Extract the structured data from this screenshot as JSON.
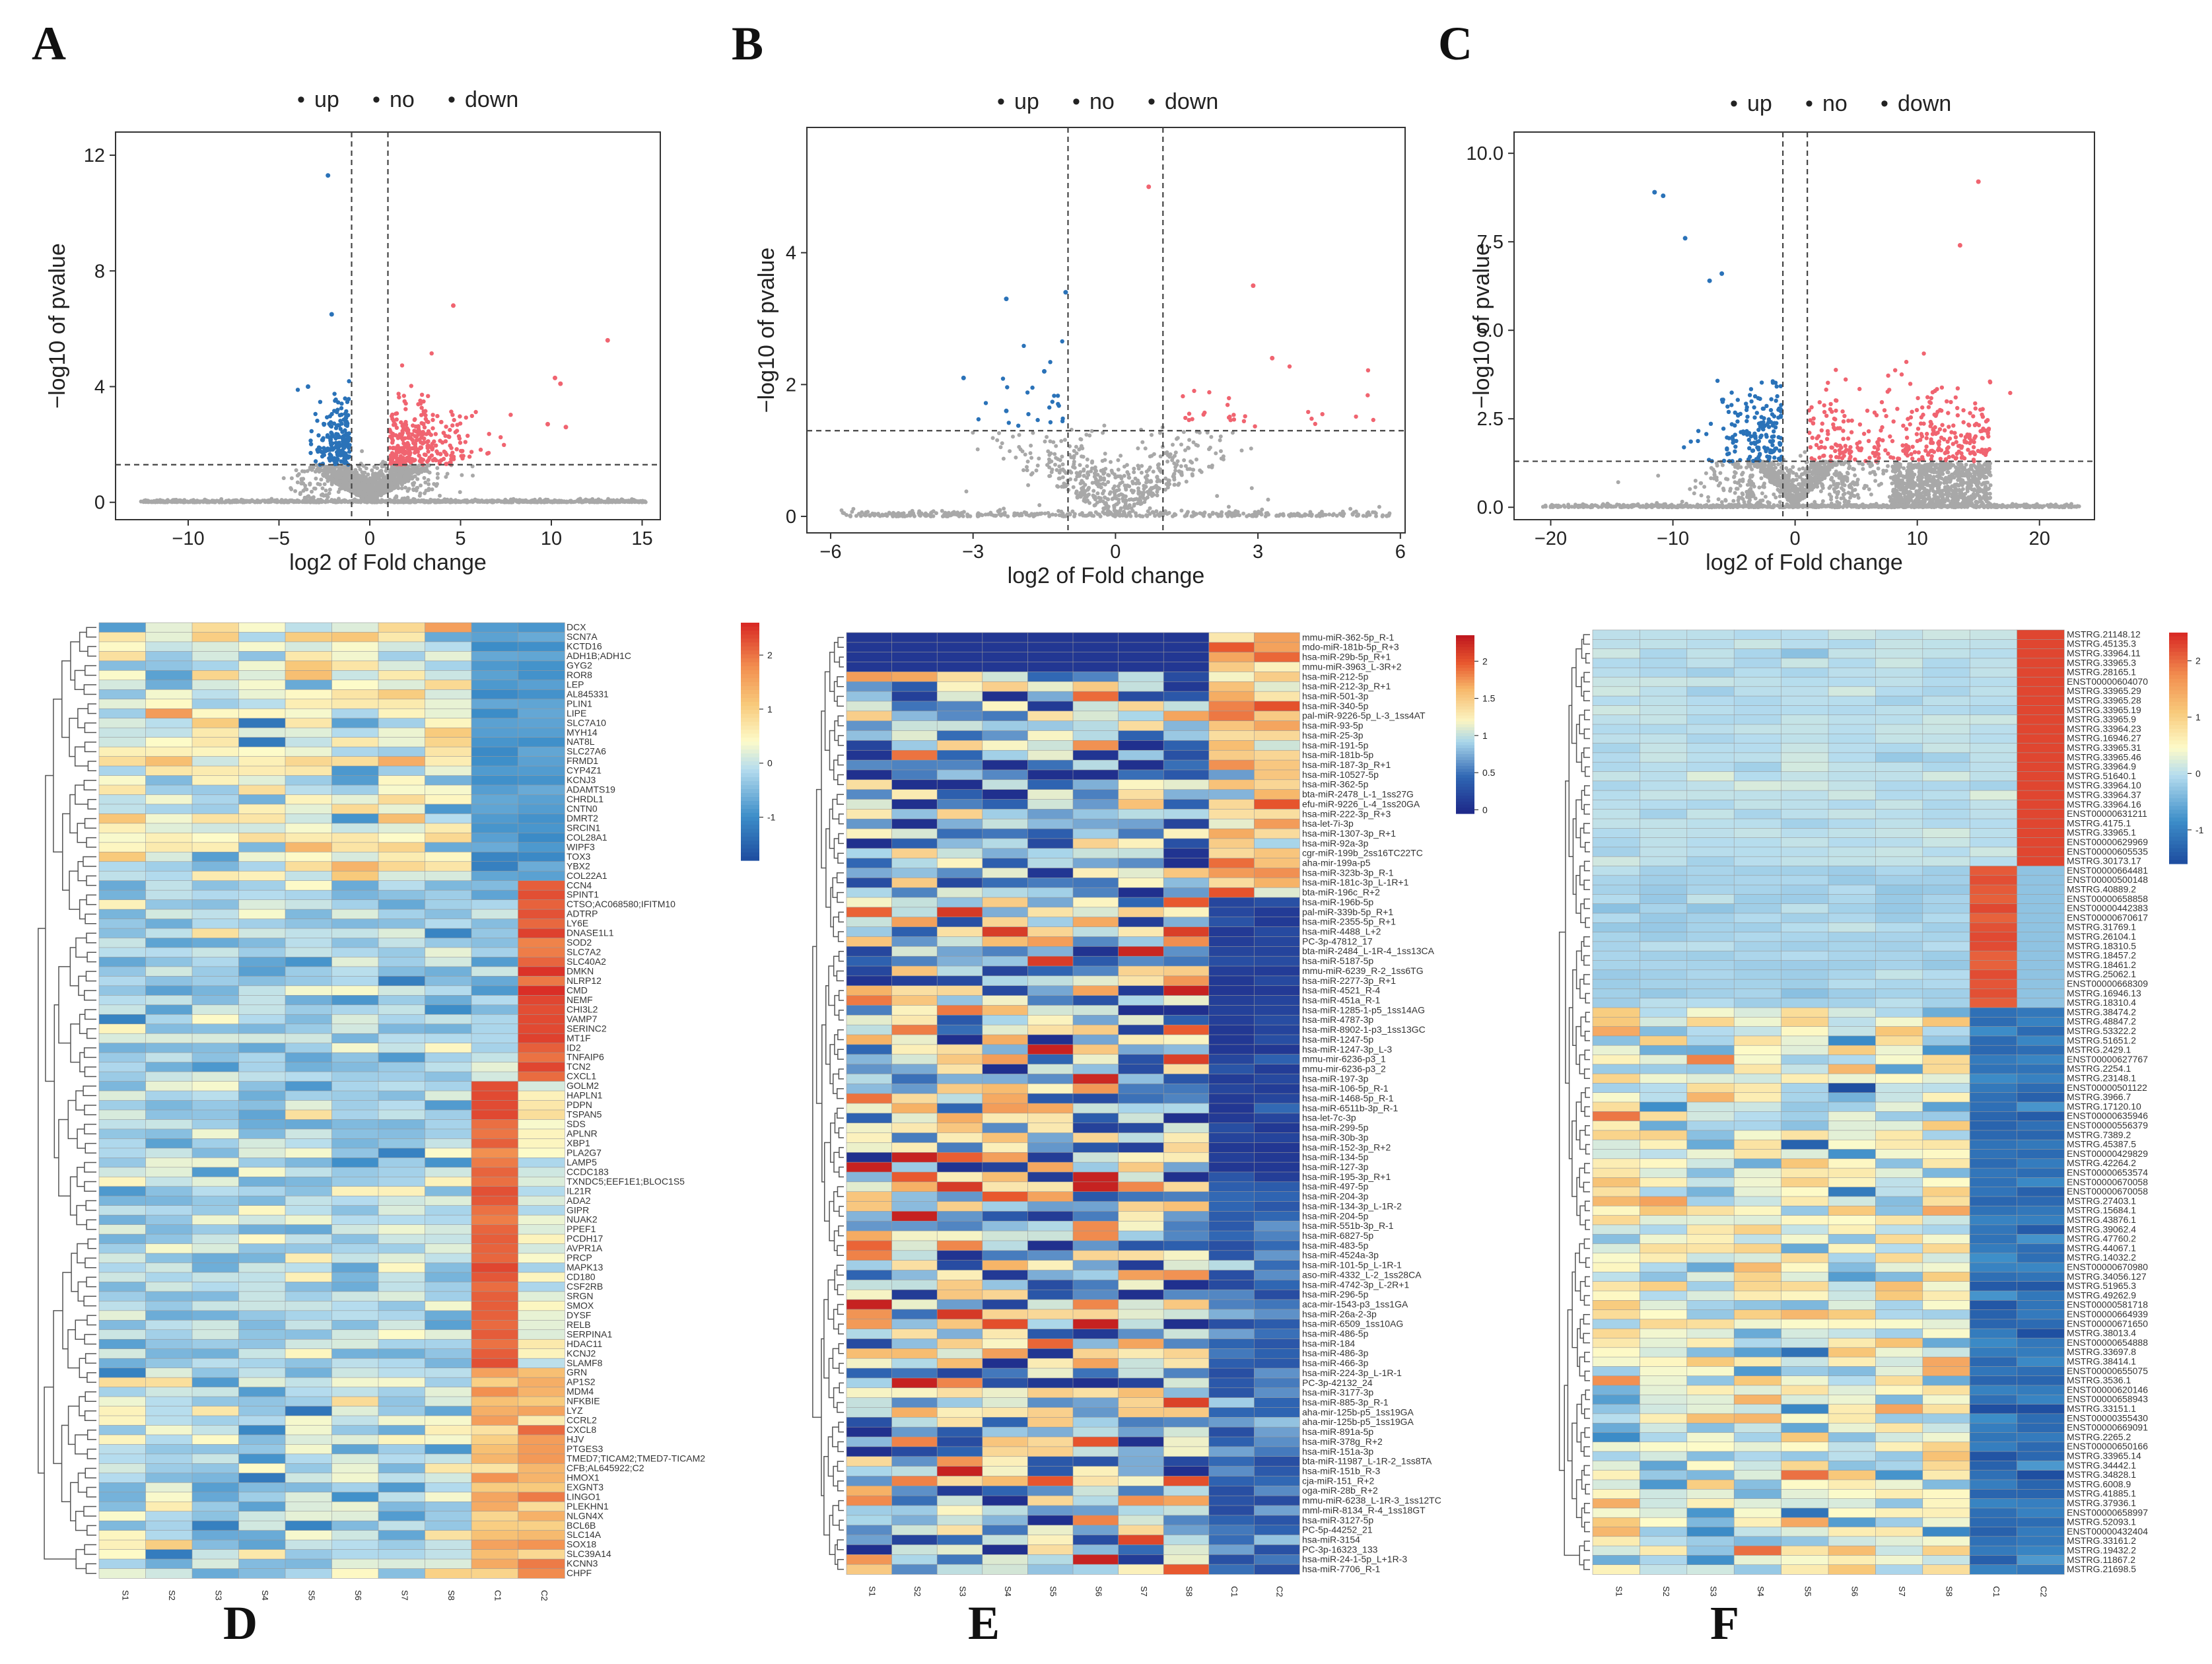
{
  "panel_labels": {
    "A": "A",
    "B": "B",
    "C": "C",
    "D": "D",
    "E": "E",
    "F": "F"
  },
  "colors": {
    "up": "#f06470",
    "no": "#a8a8a8",
    "down": "#2a72b8",
    "hm_low": "#1a3f9c",
    "hm_mid": "#fdfbc9",
    "hm_high": "#e8372a"
  },
  "chart_data": [
    {
      "id": "A",
      "type": "scatter",
      "legend": [
        {
          "name": "up",
          "symbol": "•"
        },
        {
          "name": "no",
          "symbol": "•"
        },
        {
          "name": "down",
          "symbol": "•"
        }
      ],
      "xlabel": "log2 of Fold change",
      "ylabel": "−log10 of pvalue",
      "xlim": [
        -14,
        16
      ],
      "ylim": [
        -0.6,
        12.8
      ],
      "xticks": [
        -10,
        -5,
        0,
        5,
        10,
        15
      ],
      "yticks": [
        0,
        4,
        8,
        12
      ],
      "xtick_labels": [
        "−10",
        "−5",
        "0",
        "5",
        "10",
        "15"
      ],
      "ytick_labels": [
        "0",
        "4",
        "8",
        "12"
      ],
      "vlines": [
        -1,
        1
      ],
      "hline": 1.3,
      "highlights": [
        {
          "x": -2.3,
          "y": 11.3,
          "g": "down"
        },
        {
          "x": -2.1,
          "y": 6.5,
          "g": "down"
        },
        {
          "x": 4.6,
          "y": 6.8,
          "g": "up"
        },
        {
          "x": 13.1,
          "y": 5.6,
          "g": "up"
        },
        {
          "x": 10.2,
          "y": 4.3,
          "g": "up"
        },
        {
          "x": 10.5,
          "y": 4.1,
          "g": "up"
        },
        {
          "x": 9.8,
          "y": 2.7,
          "g": "up"
        },
        {
          "x": 10.8,
          "y": 2.6,
          "g": "up"
        },
        {
          "x": -3.4,
          "y": 4.0,
          "g": "down"
        }
      ]
    },
    {
      "id": "B",
      "type": "scatter",
      "legend": [
        {
          "name": "up",
          "symbol": "•"
        },
        {
          "name": "no",
          "symbol": "•"
        },
        {
          "name": "down",
          "symbol": "•"
        }
      ],
      "xlabel": "log2 of Fold change",
      "ylabel": "−log10 of pvalue",
      "xlim": [
        -6.5,
        6.1
      ],
      "ylim": [
        -0.25,
        5.9
      ],
      "xticks": [
        -6,
        -3,
        0,
        3,
        6
      ],
      "yticks": [
        0,
        2,
        4
      ],
      "xtick_labels": [
        "−6",
        "−3",
        "0",
        "3",
        "6"
      ],
      "ytick_labels": [
        "0",
        "2",
        "4"
      ],
      "vlines": [
        -1,
        1
      ],
      "hline": 1.3,
      "highlights": [
        {
          "x": 0.7,
          "y": 5.0,
          "g": "up"
        },
        {
          "x": 2.9,
          "y": 3.5,
          "g": "up"
        },
        {
          "x": -1.05,
          "y": 3.4,
          "g": "down"
        },
        {
          "x": -2.3,
          "y": 3.3,
          "g": "down"
        },
        {
          "x": -3.2,
          "y": 2.1,
          "g": "down"
        },
        {
          "x": 3.3,
          "y": 2.4,
          "g": "up"
        },
        {
          "x": -2.3,
          "y": 1.6,
          "g": "down"
        },
        {
          "x": -1.5,
          "y": 2.2,
          "g": "down"
        }
      ]
    },
    {
      "id": "C",
      "type": "scatter",
      "legend": [
        {
          "name": "up",
          "symbol": "•"
        },
        {
          "name": "no",
          "symbol": "•"
        },
        {
          "name": "down",
          "symbol": "•"
        }
      ],
      "xlabel": "log2 of Fold change",
      "ylabel": "−log10 of pvalue",
      "xlim": [
        -23,
        24.5
      ],
      "ylim": [
        -0.35,
        10.6
      ],
      "xticks": [
        -20,
        -10,
        0,
        10,
        20
      ],
      "yticks": [
        0,
        2.5,
        5,
        7.5,
        10
      ],
      "xtick_labels": [
        "−20",
        "−10",
        "0",
        "10",
        "20"
      ],
      "ytick_labels": [
        "0.0",
        "2.5",
        "5.0",
        "7.5",
        "10.0"
      ],
      "vlines": [
        -1,
        1
      ],
      "hline": 1.3,
      "highlights": [
        {
          "x": -11.5,
          "y": 8.9,
          "g": "down"
        },
        {
          "x": -10.8,
          "y": 8.8,
          "g": "down"
        },
        {
          "x": -9.0,
          "y": 7.6,
          "g": "down"
        },
        {
          "x": 15.0,
          "y": 9.2,
          "g": "up"
        },
        {
          "x": 13.5,
          "y": 7.4,
          "g": "up"
        },
        {
          "x": -6.0,
          "y": 6.6,
          "g": "down"
        },
        {
          "x": -7.0,
          "y": 6.4,
          "g": "down"
        }
      ]
    }
  ],
  "heatmaps": [
    {
      "id": "D",
      "type": "heatmap",
      "columns": [
        "S1",
        "S2",
        "S3",
        "S4",
        "S5",
        "S6",
        "S7",
        "S8",
        "C1",
        "C2"
      ],
      "colorbar": {
        "ticks": [
          "2",
          "1",
          "0",
          "-1"
        ],
        "values": [
          2,
          1,
          0,
          -1
        ],
        "min": -1.8,
        "max": 2.6
      },
      "rows": [
        "DCX",
        "SCN7A",
        "KCTD16",
        "ADH1B;ADH1C",
        "GYG2",
        "ROR8",
        "LEP",
        "AL845331",
        "PLIN1",
        "LIPE",
        "SLC7A10",
        "MYH14",
        "NAT8L",
        "SLC27A6",
        "FRMD1",
        "CYP4Z1",
        "KCNJ3",
        "ADAMTS19",
        "CHRDL1",
        "CNTN0",
        "DMRT2",
        "SRCIN1",
        "COL28A1",
        "WIPF3",
        "TOX3",
        "YBX2",
        "COL22A1",
        "CCN4",
        "SPINT1",
        "CTSO;AC068580;IFITM10",
        "ADTRP",
        "LY6E",
        "DNASE1L1",
        "SOD2",
        "SLC7A2",
        "SLC40A2",
        "DMKN",
        "NLRP12",
        "CMD",
        "NEMF",
        "CHI3L2",
        "VAMP7",
        "SERINC2",
        "MT1F",
        "ID2",
        "TNFAIP6",
        "TCN2",
        "CXCL1",
        "GOLM2",
        "HAPLN1",
        "PDPN",
        "TSPAN5",
        "SDS",
        "APLNR",
        "XBP1",
        "PLA2G7",
        "LAMP5",
        "CCDC183",
        "TXNDC5;EEF1E1;BLOC1S5",
        "IL21R",
        "ADA2",
        "GIPR",
        "NUAK2",
        "PPEF1",
        "PCDH17",
        "AVPR1A",
        "PRCP",
        "MAPK13",
        "CD180",
        "CSF2RB",
        "SRGN",
        "SMOX",
        "DYSF",
        "RELB",
        "SERPINA1",
        "HDAC11",
        "KCNJ2",
        "SLAMF8",
        "GRN",
        "AP1S2",
        "MDM4",
        "NFKBIE",
        "LYZ",
        "CCRL2",
        "CXCL8",
        "HJV",
        "PTGES3",
        "TMED7;TICAM2;TMED7-TICAM2",
        "CFB;AL645922;C2",
        "HMOX1",
        "EXGNT3",
        "LINGO1",
        "PLEKHN1",
        "NLGN4X",
        "BCL6B",
        "SLC14A",
        "SOX18",
        "SLC39A14",
        "KCNN3",
        "CHPF"
      ]
    },
    {
      "id": "E",
      "type": "heatmap",
      "columns": [
        "S1",
        "S2",
        "S3",
        "S4",
        "S5",
        "S6",
        "S7",
        "S8",
        "C1",
        "C2"
      ],
      "colorbar": {
        "ticks": [
          "2",
          "1.5",
          "1",
          "0.5",
          "0"
        ],
        "values": [
          2,
          1.5,
          1,
          0.5,
          0
        ],
        "min": -0.05,
        "max": 2.35
      },
      "rows": [
        "mmu-miR-362-5p_R-1",
        "mdo-miR-181b-5p_R+3",
        "hsa-miR-29b-5p_R+1",
        "mmu-miR-3963_L-3R+2",
        "hsa-miR-212-5p",
        "hsa-miR-212-3p_R+1",
        "hsa-miR-501-3p",
        "hsa-miR-340-5p",
        "pal-miR-9226-5p_L-3_1ss4AT",
        "hsa-miR-93-5p",
        "hsa-miR-25-3p",
        "hsa-miR-191-5p",
        "hsa-miR-181b-5p",
        "hsa-miR-187-3p_R+1",
        "hsa-miR-10527-5p",
        "hsa-miR-362-5p",
        "bta-miR-2478_L-1_1ss27G",
        "efu-miR-9226_L-4_1ss20GA",
        "hsa-miR-222-3p_R+3",
        "hsa-let-7i-3p",
        "hsa-miR-1307-3p_R+1",
        "hsa-miR-92a-3p",
        "cgr-miR-199b_2ss16TC22TC",
        "aha-mir-199a-p5",
        "hsa-miR-323b-3p_R-1",
        "hsa-miR-181c-3p_L-1R+1",
        "bta-miR-196c_R+2",
        "hsa-miR-196b-5p",
        "pal-miR-339b-5p_R+1",
        "hsa-miR-2355-5p_R+1",
        "hsa-miR-4488_L+2",
        "PC-3p-47812_17",
        "bta-miR-2484_L-1R-4_1ss13CA",
        "hsa-miR-5187-5p",
        "mmu-miR-6239_R-2_1ss6TG",
        "hsa-miR-2277-3p_R+1",
        "hsa-miR-4521_R-4",
        "hsa-miR-451a_R-1",
        "hsa-miR-1285-1-p5_1ss14AG",
        "hsa-miR-4787-3p",
        "hsa-miR-8902-1-p3_1ss13GC",
        "hsa-miR-1247-5p",
        "hsa-miR-1247-3p_L-3",
        "mmu-mir-6236-p3_1",
        "mmu-mir-6236-p3_2",
        "hsa-miR-197-3p",
        "hsa-miR-106-5p_R-1",
        "hsa-miR-1468-5p_R-1",
        "hsa-miR-6511b-3p_R-1",
        "hsa-let-7c-3p",
        "hsa-miR-299-5p",
        "hsa-miR-30b-3p",
        "hsa-miR-152-3p_R+2",
        "hsa-miR-134-5p",
        "hsa-miR-127-3p",
        "hsa-miR-195-3p_R+1",
        "hsa-miR-497-5p",
        "hsa-miR-204-3p",
        "hsa-miR-134-3p_L-1R-2",
        "hsa-miR-204-5p",
        "hsa-miR-551b-3p_R-1",
        "hsa-miR-6827-5p",
        "hsa-miR-483-5p",
        "hsa-miR-4524a-3p",
        "hsa-miR-101-5p_L-1R-1",
        "aso-miR-4332_L-2_1ss28CA",
        "hsa-miR-4742-3p_L-2R+1",
        "hsa-miR-296-5p",
        "aca-mir-1543-p3_1ss1GA",
        "hsa-miR-26a-2-3p",
        "hsa-miR-6509_1ss10AG",
        "hsa-miR-486-5p",
        "hsa-miR-184",
        "hsa-miR-486-3p",
        "hsa-miR-466-3p",
        "hsa-miR-224-3p_L-1R-1",
        "PC-3p-42132_24",
        "hsa-miR-3177-3p",
        "hsa-miR-885-3p_R-1",
        "aha-mir-125b-p5_1ss19GA",
        "aha-mir-125b-p5_1ss19GA",
        "hsa-miR-891a-5p",
        "hsa-miR-378g_R+2",
        "hsa-miR-151a-3p",
        "bta-miR-11987_L-1R-2_1ss8TA",
        "hsa-miR-151b_R-3",
        "cja-miR-151_R+2",
        "oga-miR-28b_R+2",
        "mmu-miR-6238_L-1R-3_1ss12TC",
        "mml-miR-8134_R-4_1ss18GT",
        "hsa-miR-3127-5p",
        "PC-5p-44252_21",
        "hsa-miR-3154",
        "PC-3p-16323_133",
        "hsa-miR-24-1-5p_L+1R-3",
        "hsa-miR-7706_R-1"
      ]
    },
    {
      "id": "F",
      "type": "heatmap",
      "columns": [
        "S1",
        "S2",
        "S3",
        "S4",
        "S5",
        "S6",
        "S7",
        "S8",
        "C1",
        "C2"
      ],
      "colorbar": {
        "ticks": [
          "2",
          "1",
          "0",
          "-1"
        ],
        "values": [
          2,
          1,
          0,
          -1
        ],
        "min": -1.6,
        "max": 2.5
      },
      "rows": [
        "MSTRG.21148.12",
        "MSTRG.45135.3",
        "MSTRG.33964.11",
        "MSTRG.33965.3",
        "MSTRG.28165.1",
        "ENST00000604070",
        "MSTRG.33965.29",
        "MSTRG.33965.28",
        "MSTRG.33965.19",
        "MSTRG.33965.9",
        "MSTRG.33964.23",
        "MSTRG.16946.27",
        "MSTRG.33965.31",
        "MSTRG.33965.46",
        "MSTRG.33964.9",
        "MSTRG.51640.1",
        "MSTRG.33964.10",
        "MSTRG.33964.37",
        "MSTRG.33964.16",
        "ENST00000631211",
        "MSTRG.4175.1",
        "MSTRG.33965.1",
        "ENST00000629969",
        "ENST00000605535",
        "MSTRG.30173.17",
        "ENST00000664481",
        "ENST00000500148",
        "MSTRG.40889.2",
        "ENST00000658858",
        "ENST00000442383",
        "ENST00000670617",
        "MSTRG.31769.1",
        "MSTRG.26104.1",
        "MSTRG.18310.5",
        "MSTRG.18457.2",
        "MSTRG.18461.2",
        "MSTRG.25062.1",
        "ENST00000668309",
        "MSTRG.16946.13",
        "MSTRG.18310.4",
        "MSTRG.38474.2",
        "MSTRG.48847.2",
        "MSTRG.53322.2",
        "MSTRG.51651.2",
        "MSTRG.2429.1",
        "ENST00000627767",
        "MSTRG.2254.1",
        "MSTRG.23148.1",
        "ENST00000501122",
        "MSTRG.3966.7",
        "MSTRG.17120.10",
        "ENST00000635946",
        "ENST00000556379",
        "MSTRG.7389.2",
        "MSTRG.45387.5",
        "ENST00000429829",
        "MSTRG.42264.2",
        "ENST00000653574",
        "ENST00000670058",
        "ENST00000670058",
        "MSTRG.27403.1",
        "MSTRG.15684.1",
        "MSTRG.43876.1",
        "MSTRG.39062.4",
        "MSTRG.47760.2",
        "MSTRG.44067.1",
        "MSTRG.14032.2",
        "ENST00000670980",
        "MSTRG.34056.127",
        "MSTRG.51965.3",
        "MSTRG.49262.9",
        "ENST00000581718",
        "ENST00000664939",
        "ENST00000671650",
        "MSTRG.38013.4",
        "ENST00000654888",
        "MSTRG.33697.8",
        "MSTRG.38414.1",
        "ENST00000655075",
        "MSTRG.3536.1",
        "ENST00000620146",
        "ENST00000658943",
        "MSTRG.33151.1",
        "ENST00000355430",
        "ENST00000669091",
        "MSTRG.2265.2",
        "ENST00000650166",
        "MSTRG.33965.14",
        "MSTRG.34442.1",
        "MSTRG.34828.1",
        "MSTRG.6008.9",
        "MSTRG.41885.1",
        "MSTRG.37936.1",
        "ENST00000658997",
        "MSTRG.52093.1",
        "ENST00000432404",
        "MSTRG.33161.2",
        "MSTRG.19432.2",
        "MSTRG.11867.2",
        "MSTRG.21698.5"
      ]
    }
  ]
}
